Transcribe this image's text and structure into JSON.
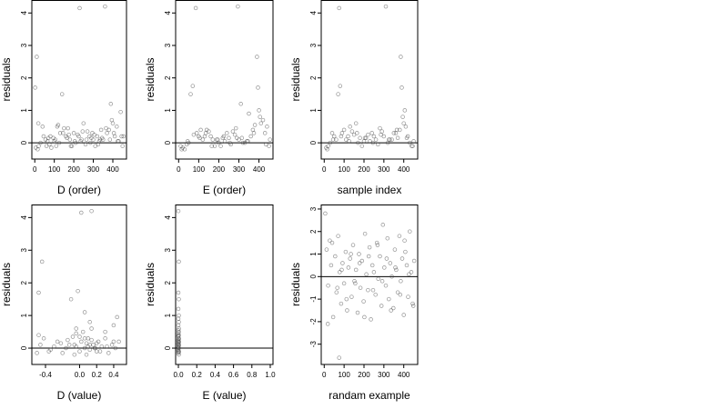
{
  "chart_data": [
    {
      "type": "scatter",
      "xlabel": "D (order)",
      "ylabel": "residuals",
      "xlim": [
        -15,
        470
      ],
      "ylim": [
        -0.5,
        4.4
      ],
      "xticks": [
        "0",
        "100",
        "200",
        "300",
        "400"
      ],
      "yticks": [
        "0",
        "1",
        "2",
        "3",
        "4"
      ],
      "reference_line_y": 0,
      "x": [
        2,
        10,
        18,
        40,
        80,
        120,
        140,
        170,
        230,
        300,
        360,
        390,
        420,
        440,
        60,
        100,
        200,
        250,
        320,
        380,
        5,
        30,
        55,
        75,
        95,
        110,
        130,
        150,
        160,
        180,
        190,
        210,
        220,
        240,
        260,
        270,
        280,
        290,
        310,
        330,
        340,
        350,
        370,
        400,
        410,
        430,
        450,
        15,
        45,
        65,
        85,
        105,
        125,
        145,
        165,
        185,
        205,
        225,
        245,
        265,
        285,
        305,
        325,
        345,
        365,
        385,
        405,
        425,
        445,
        20,
        70,
        115,
        175,
        235,
        295,
        335,
        395,
        455
      ],
      "y": [
        1.7,
        2.65,
        0.6,
        0.5,
        0.2,
        0.55,
        1.5,
        0.45,
        4.15,
        0.1,
        4.2,
        1.2,
        0.5,
        0.95,
        -0.1,
        0.05,
        0.3,
        0.6,
        0.2,
        0.4,
        -0.15,
        0.0,
        0.1,
        -0.05,
        0.15,
        -0.1,
        0.3,
        0.45,
        0.2,
        0.1,
        -0.1,
        0.0,
        0.25,
        0.1,
        -0.05,
        0.35,
        0.2,
        0.15,
        -0.1,
        0.05,
        0.4,
        0.1,
        0.3,
        0.6,
        0.2,
        0.05,
        -0.1,
        -0.2,
        0.2,
        0.05,
        -0.15,
        0.1,
        0.0,
        0.3,
        0.15,
        -0.1,
        0.05,
        0.2,
        0.35,
        0.1,
        0.0,
        0.25,
        -0.05,
        0.15,
        0.45,
        0.1,
        0.3,
        0.05,
        0.2,
        -0.1,
        0.15,
        0.5,
        0.25,
        0.05,
        0.3,
        0.1,
        0.7,
        0.2
      ]
    },
    {
      "type": "scatter",
      "xlabel": "E (order)",
      "ylabel": "residuals",
      "xlim": [
        -15,
        470
      ],
      "ylim": [
        -0.5,
        4.4
      ],
      "xticks": [
        "0",
        "100",
        "200",
        "300",
        "400"
      ],
      "yticks": [
        "0",
        "1",
        "2",
        "3",
        "4"
      ],
      "reference_line_y": 0,
      "x": [
        60,
        70,
        85,
        295,
        390,
        395,
        420,
        110,
        130,
        150,
        170,
        250,
        310,
        350,
        380,
        10,
        30,
        50,
        90,
        120,
        140,
        160,
        180,
        200,
        220,
        240,
        260,
        280,
        300,
        320,
        340,
        360,
        400,
        410,
        430,
        450,
        20,
        40,
        100,
        190,
        210,
        230,
        270,
        290,
        330,
        370,
        440,
        455,
        15,
        45,
        75,
        105,
        135,
        165,
        195,
        225,
        255,
        285,
        315,
        345,
        375,
        405,
        435
      ],
      "y": [
        1.5,
        1.75,
        4.15,
        4.2,
        2.65,
        1.7,
        0.7,
        0.4,
        0.2,
        0.35,
        0.1,
        0.15,
        1.2,
        0.9,
        0.55,
        -0.1,
        -0.2,
        0.0,
        0.3,
        0.1,
        0.4,
        0.2,
        -0.1,
        0.0,
        0.15,
        0.3,
        -0.05,
        0.25,
        0.1,
        0.0,
        0.05,
        0.2,
        1.0,
        0.6,
        0.3,
        -0.1,
        -0.15,
        -0.05,
        0.2,
        0.1,
        -0.1,
        0.05,
        0.35,
        0.15,
        0.0,
        0.4,
        0.5,
        0.1,
        -0.2,
        0.05,
        0.25,
        0.15,
        0.3,
        -0.1,
        0.1,
        0.2,
        0.0,
        0.45,
        0.15,
        0.05,
        0.3,
        0.8,
        -0.05
      ]
    },
    {
      "type": "scatter",
      "xlabel": "sample index",
      "ylabel": "residuals",
      "xlim": [
        -15,
        470
      ],
      "ylim": [
        -0.5,
        4.4
      ],
      "xticks": [
        "0",
        "100",
        "200",
        "300",
        "400"
      ],
      "yticks": [
        "0",
        "1",
        "2",
        "3",
        "4"
      ],
      "reference_line_y": 0,
      "x": [
        70,
        80,
        75,
        310,
        385,
        390,
        395,
        400,
        405,
        410,
        40,
        60,
        100,
        120,
        140,
        160,
        180,
        200,
        220,
        240,
        260,
        280,
        300,
        320,
        340,
        360,
        370,
        380,
        420,
        440,
        450,
        10,
        20,
        30,
        50,
        90,
        110,
        130,
        150,
        170,
        190,
        210,
        230,
        250,
        270,
        290,
        330,
        350,
        430,
        15,
        45,
        85,
        125,
        165,
        205,
        245,
        285,
        325,
        365,
        415,
        445
      ],
      "y": [
        1.5,
        1.75,
        4.15,
        4.2,
        2.65,
        1.7,
        0.8,
        0.6,
        1.0,
        0.5,
        0.3,
        0.1,
        0.4,
        0.2,
        0.35,
        0.6,
        0.15,
        0.05,
        0.25,
        0.3,
        0.1,
        0.45,
        0.2,
        0.0,
        0.1,
        0.3,
        0.15,
        0.4,
        0.2,
        -0.1,
        0.05,
        -0.15,
        -0.1,
        0.0,
        0.2,
        0.3,
        0.1,
        0.5,
        0.25,
        0.0,
        -0.1,
        0.15,
        0.05,
        0.2,
        -0.05,
        0.35,
        0.1,
        0.3,
        0.0,
        -0.2,
        0.1,
        0.2,
        0.05,
        0.3,
        0.15,
        0.0,
        0.25,
        0.1,
        0.4,
        0.15,
        -0.1
      ]
    },
    {
      "type": "scatter",
      "xlabel": "D (value)",
      "ylabel": "residuals",
      "xlim": [
        -0.56,
        0.55
      ],
      "ylim": [
        -0.5,
        4.4
      ],
      "xticks": [
        "-0.4",
        "0.0",
        "0.2",
        "0.4"
      ],
      "xtick_values": [
        -0.4,
        0.0,
        0.2,
        0.4
      ],
      "yticks": [
        "0",
        "1",
        "2",
        "3",
        "4"
      ],
      "reference_line_y": 0,
      "x": [
        -0.48,
        -0.44,
        0.02,
        0.14,
        -0.1,
        -0.04,
        -0.02,
        0.06,
        0.12,
        0.3,
        0.4,
        0.44,
        -0.5,
        -0.46,
        -0.42,
        -0.36,
        -0.3,
        -0.26,
        -0.2,
        -0.16,
        -0.12,
        -0.08,
        -0.06,
        -0.04,
        0.0,
        0.02,
        0.04,
        0.06,
        0.08,
        0.1,
        0.12,
        0.14,
        0.16,
        0.18,
        0.2,
        0.22,
        0.26,
        0.3,
        0.34,
        0.38,
        0.42,
        0.46,
        -0.48,
        -0.34,
        -0.22,
        -0.14,
        -0.06,
        0.0,
        0.08,
        0.1,
        0.14,
        0.2,
        0.24,
        0.32,
        0.4,
        -0.04,
        0.06,
        0.12,
        0.18
      ],
      "y": [
        1.7,
        2.65,
        4.15,
        4.2,
        1.5,
        0.6,
        1.75,
        1.1,
        0.8,
        0.5,
        0.7,
        0.95,
        -0.15,
        0.1,
        0.3,
        -0.1,
        0.05,
        0.2,
        -0.15,
        0.0,
        0.1,
        0.35,
        -0.2,
        0.05,
        -0.1,
        0.2,
        0.5,
        0.0,
        0.15,
        0.3,
        -0.05,
        0.25,
        0.1,
        0.0,
        -0.1,
        0.2,
        0.05,
        0.3,
        -0.15,
        0.1,
        0.0,
        0.2,
        0.4,
        -0.05,
        0.15,
        0.25,
        0.1,
        0.35,
        -0.2,
        0.05,
        0.6,
        0.15,
        -0.1,
        0.05,
        0.2,
        0.45,
        0.3,
        0.1,
        0.0
      ]
    },
    {
      "type": "scatter",
      "xlabel": "E (value)",
      "ylabel": "residuals",
      "xlim": [
        -0.03,
        1.03
      ],
      "ylim": [
        -0.5,
        4.4
      ],
      "xticks": [
        "0.0",
        "0.2",
        "0.4",
        "0.6",
        "0.8",
        "1.0"
      ],
      "xtick_values": [
        0.0,
        0.2,
        0.4,
        0.6,
        0.8,
        1.0
      ],
      "yticks": [
        "0",
        "1",
        "2",
        "3",
        "4"
      ],
      "reference_line_y": 0,
      "x": [
        0.0,
        0.005,
        0.0,
        0.005,
        0.0,
        0.005,
        0.0,
        0.005,
        0.0,
        0.005,
        0.0,
        0.005,
        0.0,
        0.005,
        0.0,
        0.005,
        0.0,
        0.005,
        0.0,
        0.005,
        0.0,
        0.005,
        0.0,
        0.005,
        0.0,
        0.005,
        0.0,
        0.005,
        0.0,
        0.005,
        0.0,
        0.005,
        0.0,
        0.005,
        0.0
      ],
      "y": [
        4.2,
        2.65,
        1.7,
        1.5,
        1.2,
        1.0,
        0.9,
        0.8,
        0.7,
        0.6,
        0.55,
        0.5,
        0.45,
        0.4,
        0.35,
        0.3,
        0.25,
        0.2,
        0.15,
        0.1,
        0.05,
        0.0,
        -0.05,
        -0.1,
        -0.15,
        -0.2,
        0.02,
        0.08,
        0.12,
        0.18,
        0.22,
        0.28,
        -0.08,
        -0.12,
        0.38
      ]
    },
    {
      "type": "scatter",
      "xlabel": "randam example",
      "ylabel": "residuals",
      "xlim": [
        -15,
        470
      ],
      "ylim": [
        -3.9,
        3.2
      ],
      "xticks": [
        "0",
        "100",
        "200",
        "300",
        "400"
      ],
      "yticks": [
        "-3",
        "-2",
        "-1",
        "0",
        "1",
        "2",
        "3"
      ],
      "reference_line_y": 0,
      "x": [
        5,
        12,
        20,
        28,
        35,
        45,
        55,
        62,
        70,
        78,
        85,
        92,
        100,
        108,
        115,
        122,
        130,
        138,
        145,
        152,
        160,
        168,
        175,
        182,
        190,
        198,
        205,
        212,
        220,
        228,
        235,
        242,
        250,
        258,
        265,
        272,
        280,
        288,
        295,
        302,
        310,
        318,
        325,
        332,
        340,
        348,
        355,
        362,
        370,
        378,
        385,
        392,
        400,
        408,
        415,
        422,
        430,
        438,
        445,
        452,
        18,
        40,
        66,
        88,
        112,
        134,
        156,
        178,
        202,
        224,
        246,
        268,
        292,
        314,
        336,
        358,
        382,
        404,
        426,
        448,
        75
      ],
      "y": [
        2.8,
        1.2,
        -0.4,
        1.6,
        0.5,
        -1.8,
        0.9,
        -0.7,
        1.8,
        0.2,
        -1.2,
        0.6,
        -0.3,
        1.1,
        -1.5,
        0.4,
        0.8,
        -0.9,
        1.4,
        -0.2,
        0.3,
        -1.6,
        1.0,
        -0.5,
        0.7,
        -1.1,
        1.9,
        0.1,
        -0.6,
        1.3,
        -1.9,
        0.5,
        0.2,
        -0.8,
        1.5,
        -0.1,
        0.9,
        -1.3,
        2.3,
        0.4,
        -0.4,
        1.7,
        -1.0,
        0.6,
        0.0,
        -1.4,
        1.2,
        0.3,
        -0.7,
        1.8,
        -0.2,
        0.8,
        -1.7,
        1.1,
        0.5,
        -0.9,
        2.0,
        0.2,
        -1.2,
        0.7,
        -2.1,
        1.5,
        -0.5,
        0.3,
        -1.0,
        1.0,
        -0.3,
        0.6,
        -1.8,
        0.9,
        -0.6,
        1.4,
        -0.2,
        0.8,
        -1.5,
        0.4,
        -0.8,
        1.6,
        0.1,
        -1.3,
        -3.6
      ]
    }
  ]
}
